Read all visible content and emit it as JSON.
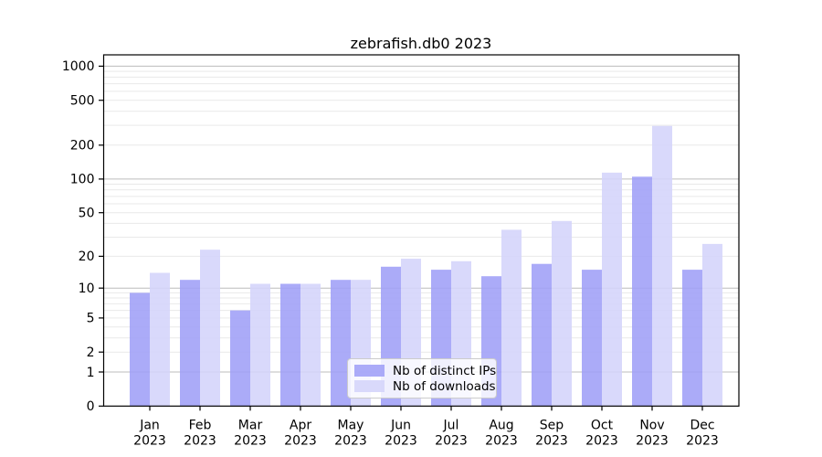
{
  "chart_data": {
    "type": "bar",
    "title": "zebrafish.db0 2023",
    "categories": [
      "Jan",
      "Feb",
      "Mar",
      "Apr",
      "May",
      "Jun",
      "Jul",
      "Aug",
      "Sep",
      "Oct",
      "Nov",
      "Dec"
    ],
    "year_label": "2023",
    "series": [
      {
        "name": "Nb of distinct IPs",
        "color": "#9f9ff7",
        "values": [
          9,
          12,
          6,
          11,
          12,
          16,
          15,
          13,
          17,
          15,
          105,
          15
        ]
      },
      {
        "name": "Nb of downloads",
        "color": "#d4d4fa",
        "values": [
          14,
          23,
          11,
          11,
          12,
          19,
          18,
          35,
          42,
          114,
          296,
          26
        ]
      }
    ],
    "yticks": [
      0,
      1,
      2,
      5,
      10,
      20,
      50,
      100,
      200,
      500,
      1000
    ],
    "scale": "log10(1+x)",
    "ylim": [
      0,
      1260
    ],
    "grid": true,
    "major_grid_values": [
      1,
      10,
      100,
      1000
    ],
    "grid_major_color": "#bcbcbc",
    "grid_minor_color": "#e9e9e9",
    "legend_position": "lower center",
    "xlabel": "",
    "ylabel": ""
  }
}
